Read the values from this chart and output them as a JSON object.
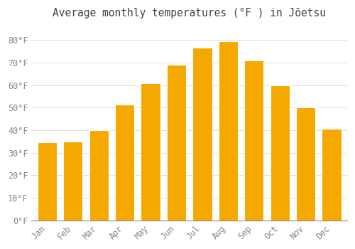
{
  "title": "Average monthly temperatures (°F ) in Jōetsu",
  "months": [
    "Jan",
    "Feb",
    "Mar",
    "Apr",
    "May",
    "Jun",
    "Jul",
    "Aug",
    "Sep",
    "Oct",
    "Nov",
    "Dec"
  ],
  "values": [
    34.5,
    35.0,
    40.0,
    51.5,
    61.0,
    69.0,
    76.5,
    79.5,
    71.0,
    60.0,
    50.0,
    40.5
  ],
  "bar_color": "#F5A800",
  "bar_edge_color": "#FFFFFF",
  "background_color": "#FFFFFF",
  "grid_color": "#DDDDDD",
  "text_color": "#888888",
  "title_color": "#444444",
  "ylim": [
    0,
    87
  ],
  "yticks": [
    0,
    10,
    20,
    30,
    40,
    50,
    60,
    70,
    80
  ],
  "ytick_labels": [
    "0°F",
    "10°F",
    "20°F",
    "30°F",
    "40°F",
    "50°F",
    "60°F",
    "70°F",
    "80°F"
  ],
  "title_fontsize": 10.5,
  "tick_fontsize": 8.5,
  "bar_width": 0.75
}
